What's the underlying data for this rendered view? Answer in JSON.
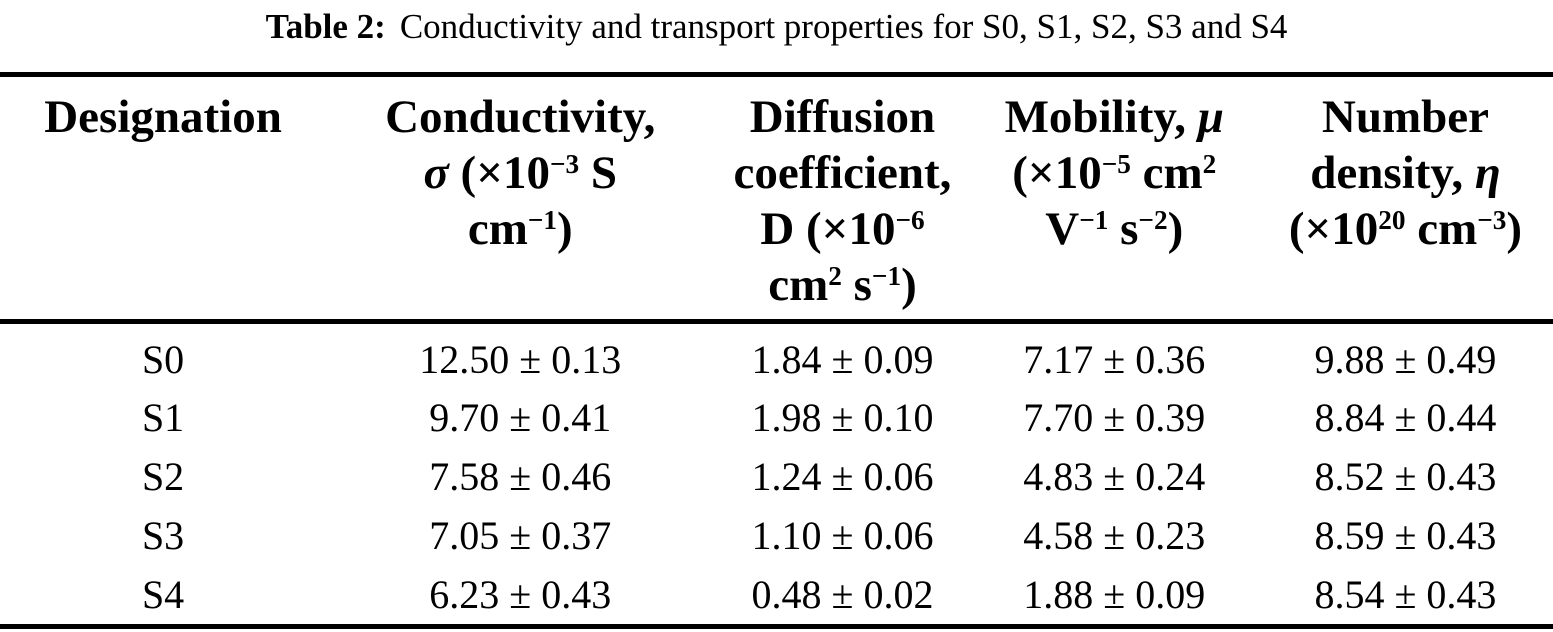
{
  "caption": {
    "label": "Table 2:",
    "text": "Conductivity and transport properties for S0, S1, S2, S3 and S4"
  },
  "table": {
    "headers": {
      "designation": [
        [
          {
            "t": "Designation"
          }
        ]
      ],
      "conductivity": [
        [
          {
            "t": "Conductivity,"
          }
        ],
        [
          {
            "t": "σ",
            "i": true
          },
          {
            "t": " (×10"
          },
          {
            "t": "−3",
            "sup": true
          },
          {
            "t": " S"
          }
        ],
        [
          {
            "t": "cm"
          },
          {
            "t": "−1",
            "sup": true
          },
          {
            "t": ")"
          }
        ]
      ],
      "diffusion": [
        [
          {
            "t": "Diffusion"
          }
        ],
        [
          {
            "t": "coefficient,"
          }
        ],
        [
          {
            "t": "D (×10"
          },
          {
            "t": "−6",
            "sup": true
          }
        ],
        [
          {
            "t": "cm"
          },
          {
            "t": "2",
            "sup": true
          },
          {
            "t": " s"
          },
          {
            "t": "−1",
            "sup": true
          },
          {
            "t": ")"
          }
        ]
      ],
      "mobility": [
        [
          {
            "t": "Mobility, "
          },
          {
            "t": "μ",
            "i": true
          }
        ],
        [
          {
            "t": "(×10"
          },
          {
            "t": "−5",
            "sup": true
          },
          {
            "t": " cm"
          },
          {
            "t": "2",
            "sup": true
          }
        ],
        [
          {
            "t": "V"
          },
          {
            "t": "−1",
            "sup": true
          },
          {
            "t": " s"
          },
          {
            "t": "−2",
            "sup": true
          },
          {
            "t": ")"
          }
        ]
      ],
      "density": [
        [
          {
            "t": "Number"
          }
        ],
        [
          {
            "t": "density, "
          },
          {
            "t": "η",
            "i": true
          }
        ],
        [
          {
            "t": "(×10"
          },
          {
            "t": "20",
            "sup": true
          },
          {
            "t": " cm"
          },
          {
            "t": "−3",
            "sup": true
          },
          {
            "t": ")"
          }
        ]
      ]
    },
    "rows": [
      {
        "designation": "S0",
        "conductivity": "12.50 ± 0.13",
        "diffusion": "1.84 ± 0.09",
        "mobility": "7.17 ± 0.36",
        "density": "9.88 ± 0.49"
      },
      {
        "designation": "S1",
        "conductivity": "9.70 ± 0.41",
        "diffusion": "1.98 ± 0.10",
        "mobility": "7.70 ± 0.39",
        "density": "8.84 ± 0.44"
      },
      {
        "designation": "S2",
        "conductivity": "7.58 ± 0.46",
        "diffusion": "1.24 ± 0.06",
        "mobility": "4.83 ± 0.24",
        "density": "8.52 ± 0.43"
      },
      {
        "designation": "S3",
        "conductivity": "7.05 ± 0.37",
        "diffusion": "1.10 ± 0.06",
        "mobility": "4.58 ± 0.23",
        "density": "8.59 ± 0.43"
      },
      {
        "designation": "S4",
        "conductivity": "6.23 ± 0.43",
        "diffusion": "0.48 ± 0.02",
        "mobility": "1.88 ± 0.09",
        "density": "8.54 ± 0.43"
      }
    ]
  },
  "colors": {
    "text": "#000000",
    "background": "#ffffff",
    "rule": "#000000"
  }
}
